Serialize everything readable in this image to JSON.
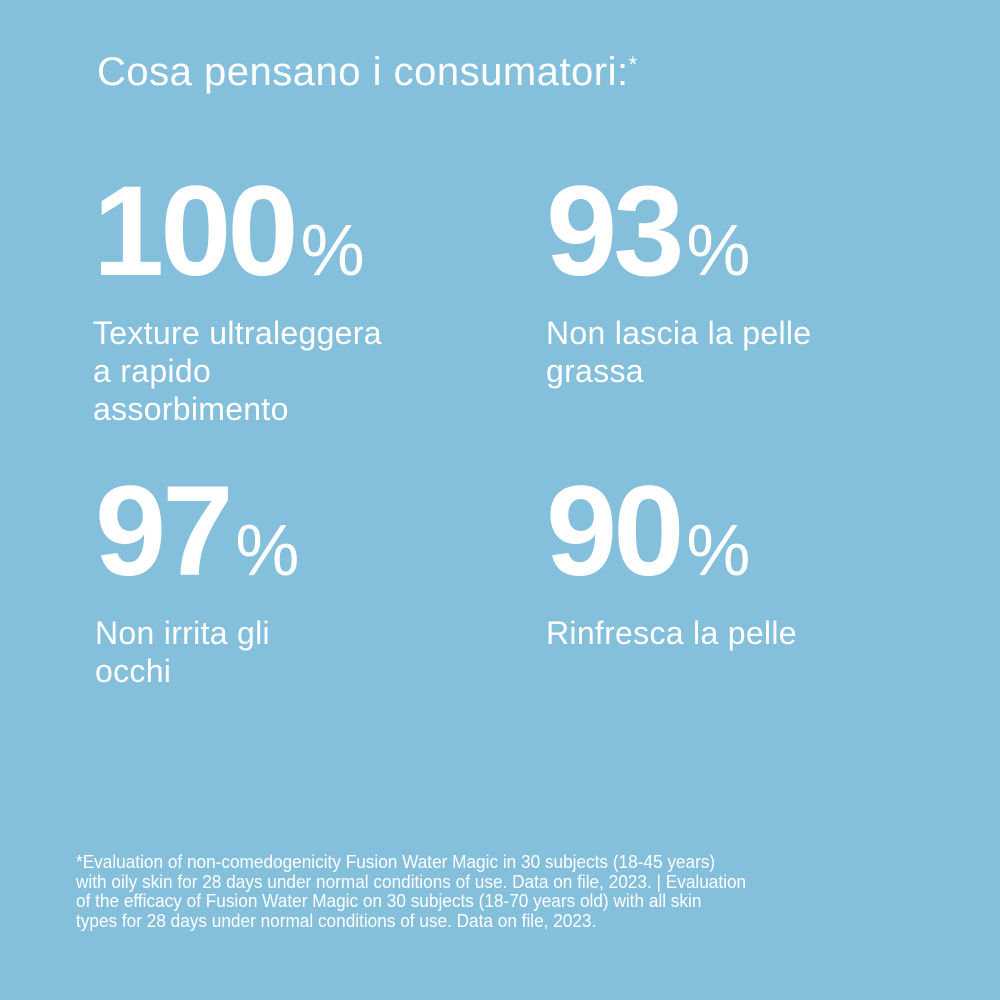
{
  "title": "Cosa pensano i consumatori:",
  "title_mark": "*",
  "stats": [
    {
      "value": "100",
      "unit": "%",
      "label": "Texture ultraleggera\na rapido\nassorbimento"
    },
    {
      "value": "93",
      "unit": "%",
      "label": "Non lascia la pelle\ngrassa"
    },
    {
      "value": "97",
      "unit": "%",
      "label": "Non irrita gli\nocchi"
    },
    {
      "value": "90",
      "unit": "%",
      "label": "Rinfresca la pelle"
    }
  ],
  "footnote": "*Evaluation of non-comedogenicity Fusion Water Magic in 30 subjects (18-45 years)\nwith oily skin for 28 days under normal conditions of use. Data on file, 2023. | Evaluation\nof the efficacy of Fusion Water Magic on 30 subjects (18-70 years old) with all skin\ntypes for 28 days under normal conditions of use. Data on file, 2023.",
  "colors": {
    "background": "#84bfdc",
    "text": "#ffffff"
  }
}
